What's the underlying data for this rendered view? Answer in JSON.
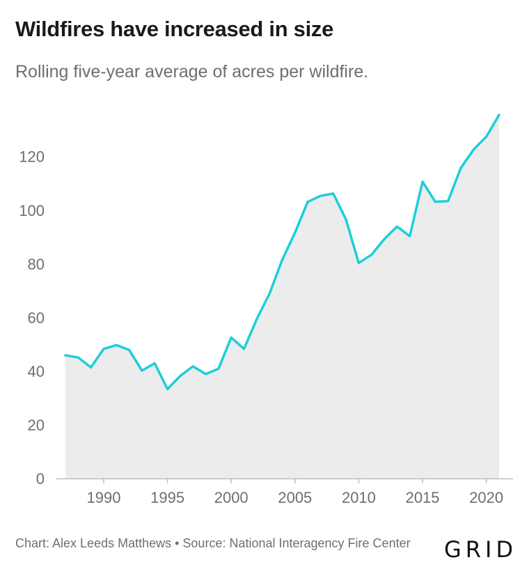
{
  "header": {
    "title": "Wildfires have increased in size",
    "subtitle": "Rolling five-year average of acres per wildfire."
  },
  "footer": {
    "credit": "Chart: Alex Leeds Matthews • Source: National Interagency Fire Center",
    "logo": "GRID"
  },
  "colors": {
    "line": "#1ccfd8",
    "area": "#ececec",
    "axis": "#bdbdbd",
    "text": "#6e6e6e",
    "title": "#1a1a1a"
  },
  "chart_data": {
    "type": "area",
    "title": "Wildfires have increased in size",
    "subtitle": "Rolling five-year average of acres per wildfire.",
    "xlabel": "",
    "ylabel": "",
    "xlim": [
      1987,
      2021
    ],
    "ylim": [
      0,
      135.5
    ],
    "x_ticks": [
      1990,
      1995,
      2000,
      2005,
      2010,
      2015,
      2020
    ],
    "y_ticks": [
      0,
      20,
      40,
      60,
      80,
      100,
      120
    ],
    "grid": false,
    "x": [
      1987,
      1988,
      1989,
      1990,
      1991,
      1992,
      1993,
      1994,
      1995,
      1996,
      1997,
      1998,
      1999,
      2000,
      2001,
      2002,
      2003,
      2004,
      2005,
      2006,
      2007,
      2008,
      2009,
      2010,
      2011,
      2012,
      2013,
      2014,
      2015,
      2016,
      2017,
      2018,
      2019,
      2020,
      2021
    ],
    "series": [
      {
        "values": [
          45.9,
          45.1,
          41.4,
          48.3,
          49.7,
          47.9,
          40.2,
          42.9,
          33.3,
          38.2,
          41.8,
          38.9,
          40.9,
          52.5,
          48.3,
          59.4,
          68.9,
          81.5,
          91.6,
          103.1,
          105.3,
          106.2,
          96.5,
          80.3,
          83.4,
          89.2,
          93.9,
          90.3,
          110.6,
          103.1,
          103.4,
          115.7,
          122.6,
          127.4,
          135.5
        ]
      }
    ]
  }
}
